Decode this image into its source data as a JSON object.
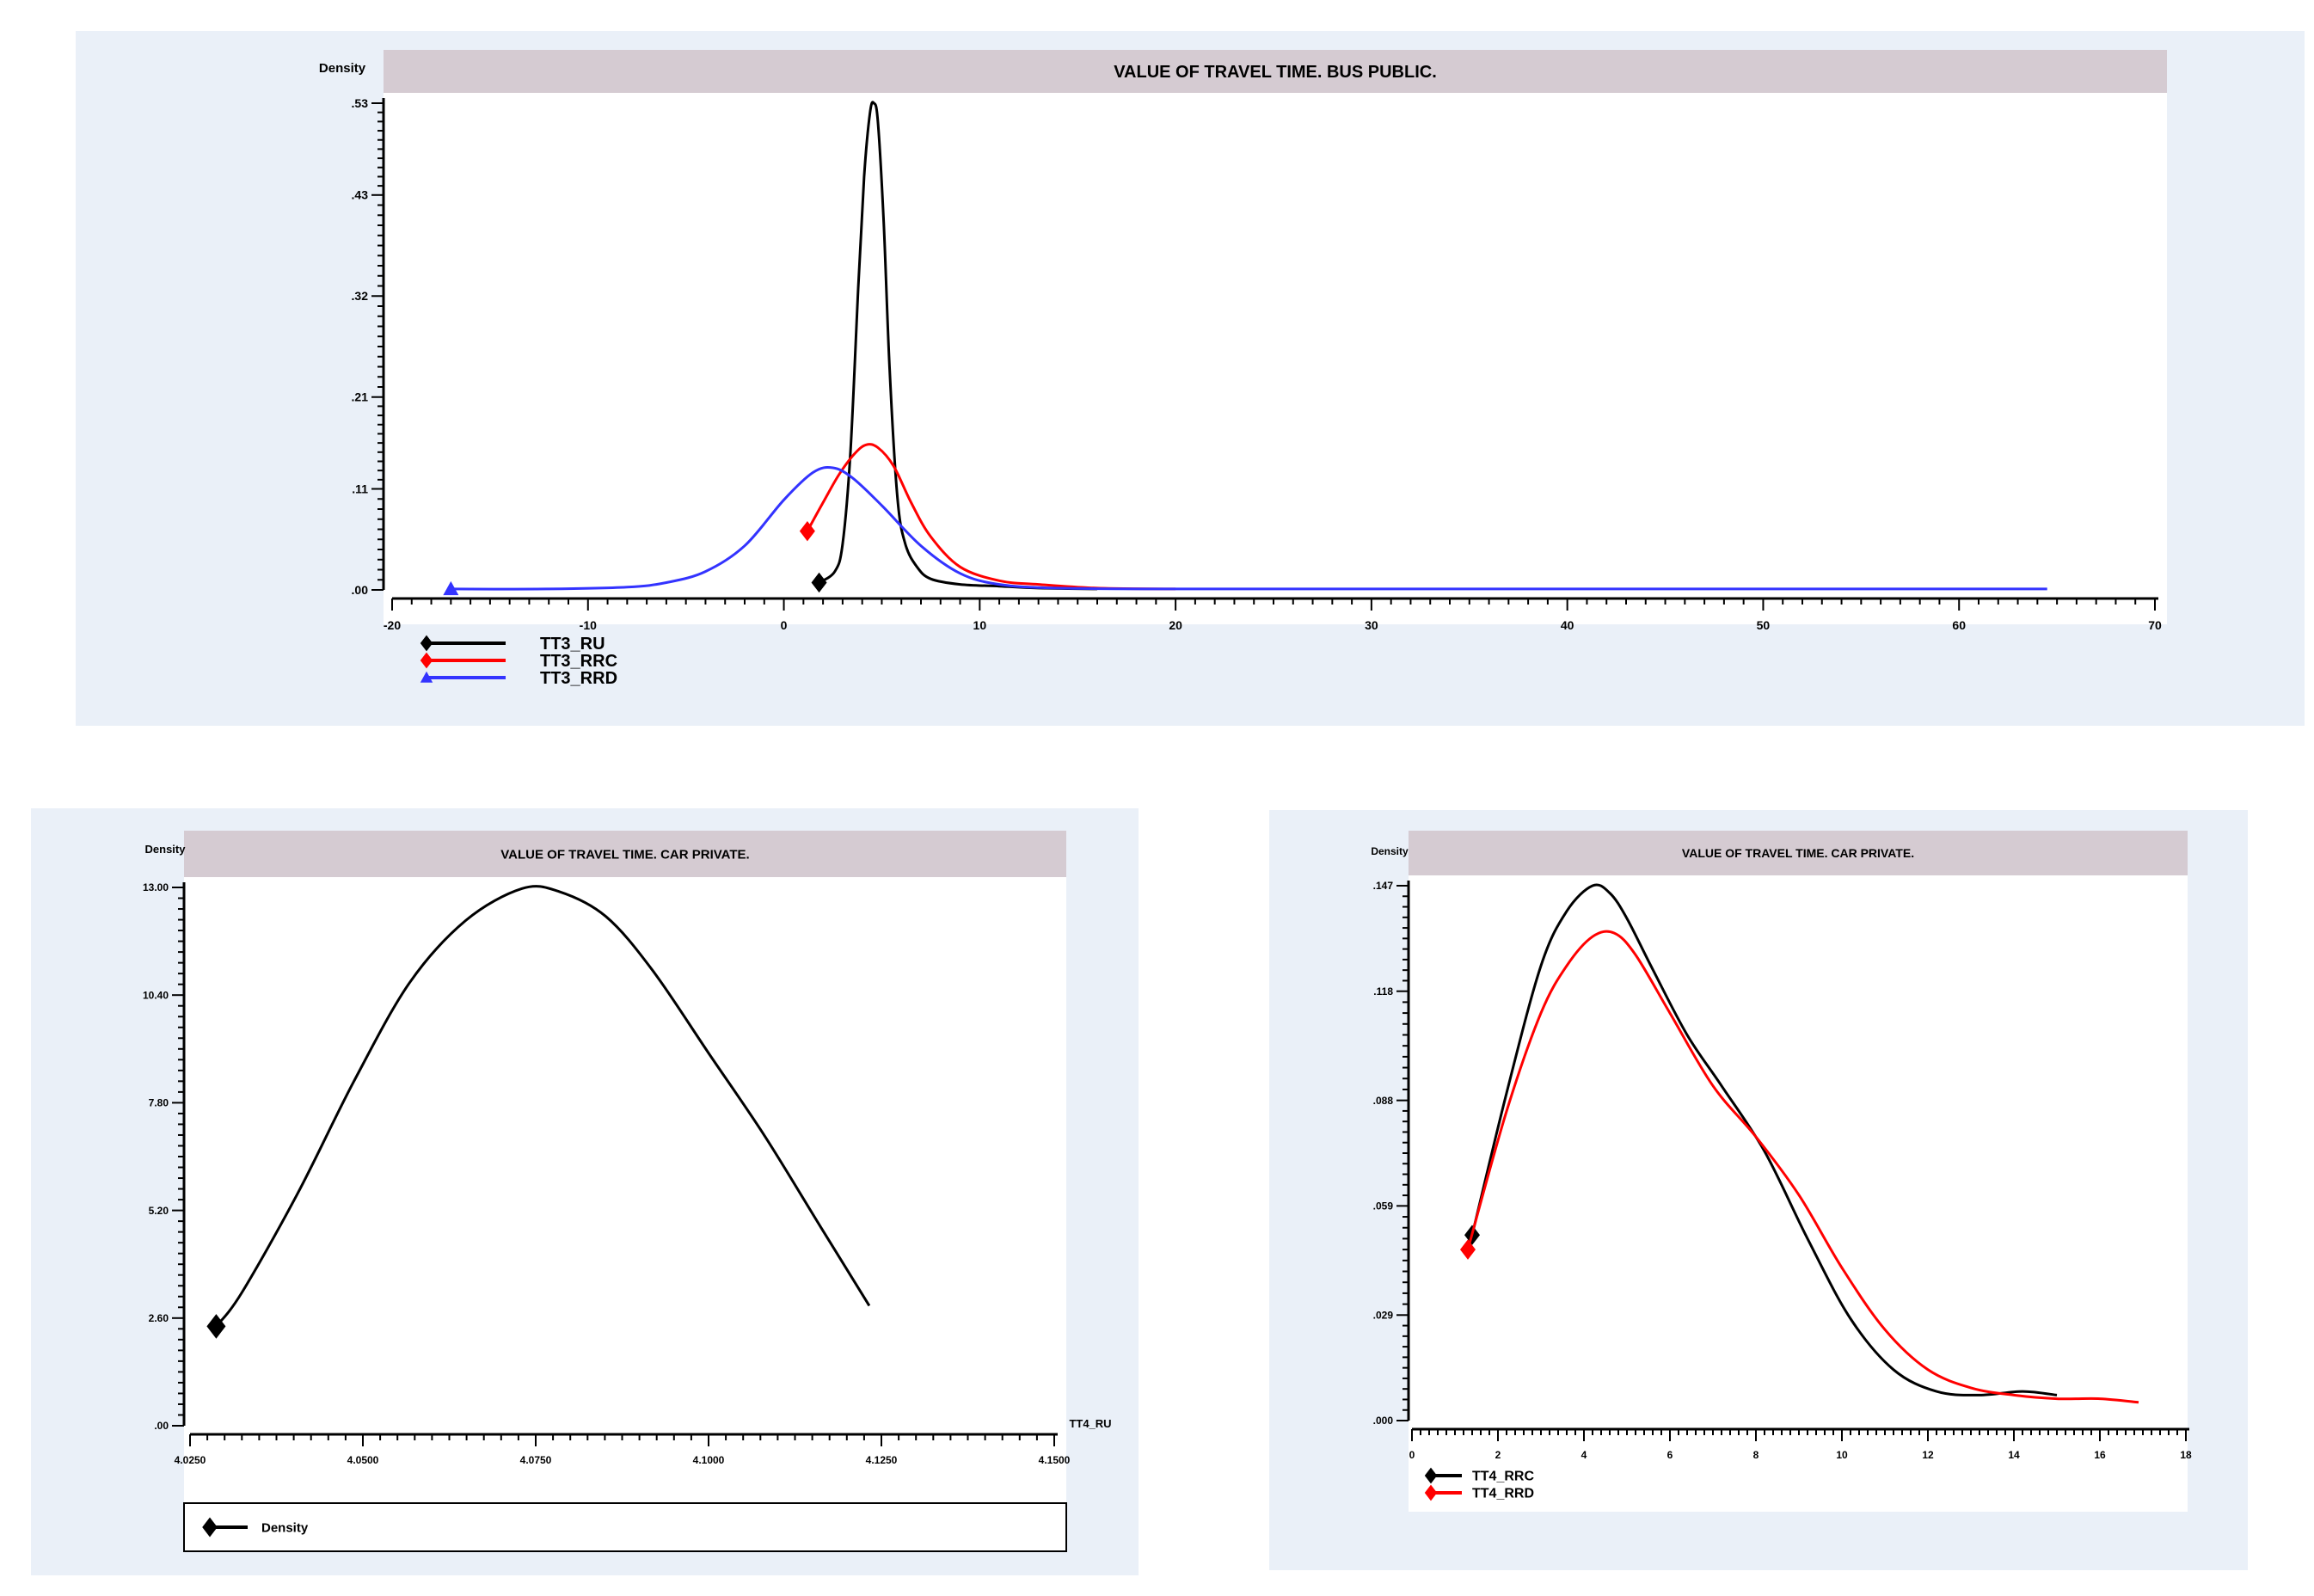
{
  "chart_data": [
    {
      "type": "line",
      "title": "VALUE OF TRAVEL TIME. BUS PUBLIC.",
      "ylabel": "Density",
      "xlabel": "",
      "xlim": [
        -20,
        70
      ],
      "ylim": [
        0,
        0.53
      ],
      "x_ticks": [
        -20,
        -10,
        0,
        10,
        20,
        30,
        40,
        50,
        60,
        70
      ],
      "x_tick_labels": [
        "-20",
        "-10",
        "0",
        "10",
        "20",
        "30",
        "40",
        "50",
        "60",
        "70"
      ],
      "y_ticks": [
        0,
        0.11,
        0.21,
        0.32,
        0.43,
        0.53
      ],
      "y_tick_labels": [
        ".00",
        ".11",
        ".21",
        ".32",
        ".43",
        ".53"
      ],
      "legend": "bottom-left",
      "series": [
        {
          "name": "TT3_RU",
          "color": "#000000",
          "marker": "diamond",
          "x": [
            1.8,
            2.6,
            3.0,
            3.4,
            3.8,
            4.1,
            4.4,
            4.6,
            4.8,
            5.1,
            5.4,
            5.8,
            6.2,
            6.8,
            7.5,
            9.0,
            11.0,
            13.0,
            16.0
          ],
          "y": [
            0.008,
            0.02,
            0.05,
            0.15,
            0.33,
            0.45,
            0.52,
            0.53,
            0.51,
            0.4,
            0.24,
            0.1,
            0.05,
            0.025,
            0.012,
            0.006,
            0.004,
            0.002,
            0.001
          ]
        },
        {
          "name": "TT3_RRC",
          "color": "#ff0000",
          "marker": "diamond",
          "x": [
            1.2,
            2.0,
            2.8,
            3.6,
            4.2,
            4.8,
            5.6,
            6.5,
            7.5,
            9.0,
            11.0,
            13.0,
            16.0,
            20.0
          ],
          "y": [
            0.064,
            0.095,
            0.125,
            0.148,
            0.158,
            0.155,
            0.135,
            0.095,
            0.058,
            0.025,
            0.01,
            0.006,
            0.002,
            0.001
          ]
        },
        {
          "name": "TT3_RRD",
          "color": "#3333ff",
          "marker": "triangle",
          "x": [
            -17.0,
            -12.0,
            -8.0,
            -6.0,
            -4.0,
            -2.0,
            0.0,
            1.5,
            2.5,
            3.5,
            5.0,
            7.0,
            9.0,
            11.0,
            14.0,
            20.0,
            30.0,
            45.0,
            64.5
          ],
          "y": [
            0.001,
            0.001,
            0.003,
            0.008,
            0.02,
            0.048,
            0.098,
            0.128,
            0.133,
            0.122,
            0.092,
            0.048,
            0.018,
            0.006,
            0.002,
            0.001,
            0.001,
            0.001,
            0.001
          ]
        }
      ]
    },
    {
      "type": "line",
      "title": "VALUE OF TRAVEL TIME. CAR PRIVATE.",
      "ylabel": "Density",
      "xlabel": "TT4_RU",
      "xlim": [
        4.025,
        4.95
      ],
      "ylim": [
        0,
        13.0
      ],
      "x_ticks": [
        4.025,
        4.05,
        4.075,
        4.1,
        4.125,
        4.15
      ],
      "x_tick_labels": [
        "4.0250",
        "4.0500",
        "4.0750",
        "4.1000",
        "4.1250",
        "4.1500"
      ],
      "x_tick_positions": [
        4.025,
        4.21,
        4.395,
        4.58,
        4.765,
        4.95
      ],
      "y_ticks": [
        0,
        2.6,
        5.2,
        7.8,
        10.4,
        13.0
      ],
      "y_tick_labels": [
        ".00",
        "2.60",
        "5.20",
        "7.80",
        "10.40",
        "13.00"
      ],
      "legend": "bottom",
      "series": [
        {
          "name": "Density",
          "color": "#000000",
          "marker": "diamond",
          "x": [
            4.053,
            4.08,
            4.14,
            4.2,
            4.26,
            4.32,
            4.38,
            4.42,
            4.47,
            4.52,
            4.58,
            4.64,
            4.7,
            4.752
          ],
          "y": [
            2.4,
            3.2,
            5.6,
            8.3,
            10.7,
            12.2,
            12.97,
            12.9,
            12.3,
            11.0,
            9.0,
            7.0,
            4.8,
            2.9
          ]
        }
      ]
    },
    {
      "type": "line",
      "title": "VALUE OF TRAVEL TIME. CAR PRIVATE.",
      "ylabel": "Density",
      "xlabel": "",
      "xlim": [
        0,
        18
      ],
      "ylim": [
        0,
        0.147
      ],
      "x_ticks": [
        0,
        2,
        4,
        6,
        8,
        10,
        12,
        14,
        16,
        18
      ],
      "x_tick_labels": [
        "0",
        "2",
        "4",
        "6",
        "8",
        "10",
        "12",
        "14",
        "16",
        "18"
      ],
      "y_ticks": [
        0,
        0.029,
        0.059,
        0.088,
        0.118,
        0.147
      ],
      "y_tick_labels": [
        ".000",
        ".029",
        ".059",
        ".088",
        ".118",
        ".147"
      ],
      "legend": "bottom-left",
      "series": [
        {
          "name": "TT4_RRC",
          "color": "#000000",
          "marker": "diamond",
          "x": [
            1.4,
            2.2,
            3.0,
            3.6,
            4.2,
            4.6,
            5.0,
            5.6,
            6.4,
            7.2,
            8.2,
            9.2,
            10.2,
            11.2,
            12.2,
            13.2,
            14.2,
            15.0
          ],
          "y": [
            0.051,
            0.09,
            0.125,
            0.14,
            0.147,
            0.145,
            0.138,
            0.124,
            0.106,
            0.092,
            0.074,
            0.05,
            0.028,
            0.014,
            0.008,
            0.007,
            0.008,
            0.007
          ]
        },
        {
          "name": "TT4_RRD",
          "color": "#ff0000",
          "marker": "diamond",
          "x": [
            1.3,
            2.2,
            3.0,
            3.6,
            4.2,
            4.7,
            5.2,
            6.0,
            7.0,
            8.0,
            9.0,
            10.0,
            11.0,
            12.0,
            13.0,
            14.0,
            15.0,
            16.0,
            16.9
          ],
          "y": [
            0.047,
            0.085,
            0.112,
            0.125,
            0.133,
            0.134,
            0.128,
            0.112,
            0.092,
            0.078,
            0.062,
            0.042,
            0.025,
            0.014,
            0.009,
            0.007,
            0.006,
            0.006,
            0.005
          ]
        }
      ]
    }
  ]
}
